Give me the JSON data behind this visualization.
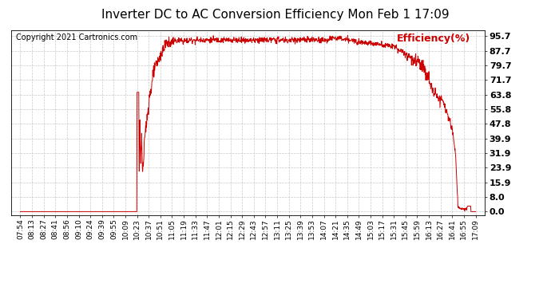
{
  "title": "Inverter DC to AC Conversion Efficiency Mon Feb 1 17:09",
  "copyright": "Copyright 2021 Cartronics.com",
  "legend_label": "Efficiency(%)",
  "yticks": [
    0.0,
    8.0,
    15.9,
    23.9,
    31.9,
    39.9,
    47.8,
    55.8,
    63.8,
    71.7,
    79.7,
    87.7,
    95.7
  ],
  "ylim": [
    -2.0,
    99.0
  ],
  "xtick_labels": [
    "07:54",
    "08:13",
    "08:27",
    "08:41",
    "08:56",
    "09:10",
    "09:24",
    "09:39",
    "09:55",
    "10:09",
    "10:23",
    "10:37",
    "10:51",
    "11:05",
    "11:19",
    "11:33",
    "11:47",
    "12:01",
    "12:15",
    "12:29",
    "12:43",
    "12:57",
    "13:11",
    "13:25",
    "13:39",
    "13:53",
    "14:07",
    "14:21",
    "14:35",
    "14:49",
    "15:03",
    "15:17",
    "15:31",
    "15:45",
    "15:59",
    "16:13",
    "16:27",
    "16:41",
    "16:55",
    "17:09"
  ],
  "line_color": "#cc0000",
  "bg_color": "#ffffff",
  "grid_color": "#bbbbbb",
  "title_fontsize": 11,
  "copyright_fontsize": 7,
  "legend_fontsize": 9,
  "ytick_fontsize": 8,
  "xtick_fontsize": 6.5,
  "figwidth": 6.9,
  "figheight": 3.75,
  "dpi": 100
}
